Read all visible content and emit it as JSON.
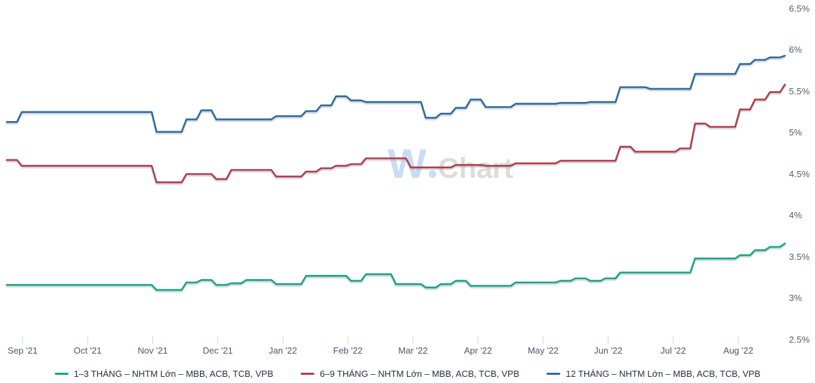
{
  "watermark": {
    "part1": "W",
    "part2": "Chart"
  },
  "colors": {
    "background": "#ffffff",
    "series_green": "#15a584",
    "series_red": "#b23a4a",
    "series_blue": "#2e6b9e",
    "axis_text": "#525c6e",
    "tick_line": "#c9d2ea",
    "legend_text": "#252f3f",
    "watermark_blue": "#c9ddf2",
    "watermark_gray": "#dcdcdc"
  },
  "chart_data": {
    "type": "line",
    "title": "",
    "grid": false,
    "legend_position": "bottom",
    "x_axis": {
      "tick_labels": [
        "Sep '21",
        "Oct '21",
        "Nov '21",
        "Dec '21",
        "Jan '22",
        "Feb '22",
        "Mar '22",
        "Apr '22",
        "May '22",
        "Jun '22",
        "Jul '22",
        "Aug '22"
      ]
    },
    "y_axis": {
      "tick_labels": [
        "6.5%",
        "6%",
        "5.5%",
        "5%",
        "4.5%",
        "4%",
        "3.5%",
        "3%",
        "2.5%"
      ],
      "tick_values": [
        6.5,
        6.0,
        5.5,
        5.0,
        4.5,
        4.0,
        3.5,
        3.0,
        2.5
      ],
      "min": 2.5,
      "max": 6.5,
      "unit": "%"
    },
    "x_resolution": "weekly",
    "series": [
      {
        "name": "1–3 THÁNG – NHTM Lớn – MBB, ACB, TCB, VPB",
        "color": "#15a584",
        "values": [
          3.16,
          3.16,
          3.16,
          3.16,
          3.16,
          3.16,
          3.16,
          3.16,
          3.16,
          3.16,
          3.1,
          3.1,
          3.19,
          3.22,
          3.16,
          3.18,
          3.22,
          3.22,
          3.17,
          3.17,
          3.27,
          3.27,
          3.27,
          3.21,
          3.29,
          3.29,
          3.17,
          3.17,
          3.13,
          3.17,
          3.21,
          3.15,
          3.15,
          3.15,
          3.19,
          3.19,
          3.19,
          3.21,
          3.24,
          3.21,
          3.24,
          3.31,
          3.31,
          3.31,
          3.31,
          3.31,
          3.48,
          3.48,
          3.48,
          3.52,
          3.58,
          3.62,
          3.66
        ]
      },
      {
        "name": "6–9 THÁNG – NHTM Lớn – MBB, ACB, TCB, VPB",
        "color": "#b23a4a",
        "values": [
          4.67,
          4.6,
          4.6,
          4.6,
          4.6,
          4.6,
          4.6,
          4.6,
          4.6,
          4.6,
          4.4,
          4.4,
          4.5,
          4.5,
          4.44,
          4.55,
          4.55,
          4.55,
          4.47,
          4.47,
          4.53,
          4.57,
          4.6,
          4.62,
          4.69,
          4.69,
          4.69,
          4.58,
          4.58,
          4.58,
          4.61,
          4.61,
          4.6,
          4.6,
          4.63,
          4.63,
          4.63,
          4.66,
          4.66,
          4.66,
          4.66,
          4.83,
          4.77,
          4.77,
          4.77,
          4.81,
          5.11,
          5.07,
          5.07,
          5.28,
          5.4,
          5.49,
          5.58
        ]
      },
      {
        "name": "12 THÁNG – NHTM Lớn – MBB, ACB, TCB, VPB",
        "color": "#2e6b9e",
        "values": [
          5.13,
          5.25,
          5.25,
          5.25,
          5.25,
          5.25,
          5.25,
          5.25,
          5.25,
          5.25,
          5.01,
          5.01,
          5.16,
          5.27,
          5.16,
          5.16,
          5.16,
          5.16,
          5.2,
          5.2,
          5.26,
          5.33,
          5.44,
          5.39,
          5.37,
          5.37,
          5.37,
          5.37,
          5.18,
          5.23,
          5.3,
          5.4,
          5.31,
          5.31,
          5.35,
          5.35,
          5.35,
          5.36,
          5.36,
          5.37,
          5.37,
          5.55,
          5.55,
          5.53,
          5.53,
          5.53,
          5.71,
          5.71,
          5.71,
          5.83,
          5.88,
          5.91,
          5.93
        ]
      }
    ]
  }
}
